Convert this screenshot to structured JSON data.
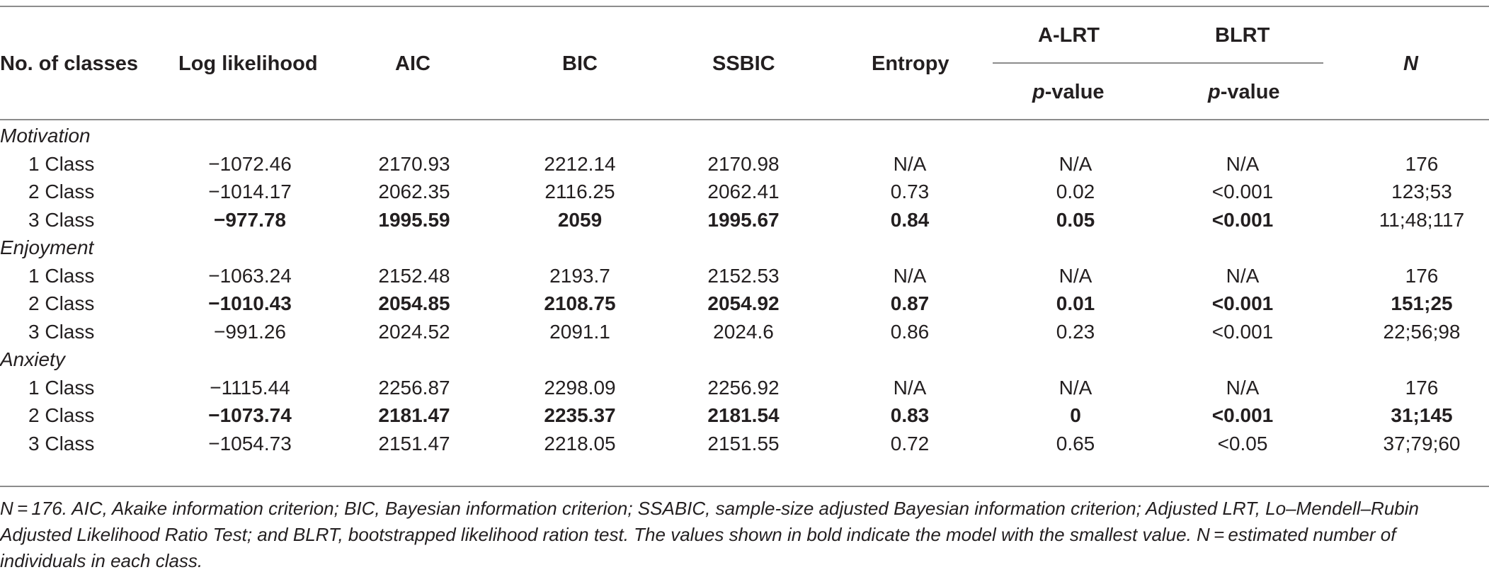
{
  "headers": {
    "col1": "No. of classes",
    "col2": "Log likelihood",
    "col3": "AIC",
    "col4": "BIC",
    "col5": "SSBIC",
    "col6": "Entropy",
    "col7_top": "A-LRT",
    "col8_top": "BLRT",
    "p_italic": "p",
    "p_rest": "-value",
    "col9": "N"
  },
  "sections": [
    {
      "title": "Motivation",
      "rows": [
        {
          "label": "1 Class",
          "bold": false,
          "values": [
            "−1072.46",
            "2170.93",
            "2212.14",
            "2170.98",
            "N/A",
            "N/A",
            "N/A",
            "176"
          ],
          "bold_cells": [
            false,
            false,
            false,
            false,
            false,
            false,
            false,
            false
          ]
        },
        {
          "label": "2 Class",
          "bold": false,
          "values": [
            "−1014.17",
            "2062.35",
            "2116.25",
            "2062.41",
            "0.73",
            "0.02",
            "<0.001",
            "123;53"
          ],
          "bold_cells": [
            false,
            false,
            false,
            false,
            false,
            false,
            false,
            false
          ]
        },
        {
          "label": "3 Class",
          "bold": false,
          "values": [
            "−977.78",
            "1995.59",
            "2059",
            "1995.67",
            "0.84",
            "0.05",
            "<0.001",
            "11;48;117"
          ],
          "bold_cells": [
            true,
            true,
            true,
            true,
            true,
            true,
            true,
            false
          ]
        }
      ]
    },
    {
      "title": "Enjoyment",
      "rows": [
        {
          "label": "1 Class",
          "bold": false,
          "values": [
            "−1063.24",
            "2152.48",
            "2193.7",
            "2152.53",
            "N/A",
            "N/A",
            "N/A",
            "176"
          ],
          "bold_cells": [
            false,
            false,
            false,
            false,
            false,
            false,
            false,
            false
          ]
        },
        {
          "label": "2 Class",
          "bold": false,
          "values": [
            "−1010.43",
            "2054.85",
            "2108.75",
            "2054.92",
            "0.87",
            "0.01",
            "<0.001",
            "151;25"
          ],
          "bold_cells": [
            true,
            true,
            true,
            true,
            true,
            true,
            true,
            true
          ]
        },
        {
          "label": "3 Class",
          "bold": false,
          "values": [
            "−991.26",
            "2024.52",
            "2091.1",
            "2024.6",
            "0.86",
            "0.23",
            "<0.001",
            "22;56;98"
          ],
          "bold_cells": [
            false,
            false,
            false,
            false,
            false,
            false,
            false,
            false
          ]
        }
      ]
    },
    {
      "title": "Anxiety",
      "rows": [
        {
          "label": "1 Class",
          "bold": false,
          "values": [
            "−1115.44",
            "2256.87",
            "2298.09",
            "2256.92",
            "N/A",
            "N/A",
            "N/A",
            "176"
          ],
          "bold_cells": [
            false,
            false,
            false,
            false,
            false,
            false,
            false,
            false
          ]
        },
        {
          "label": "2 Class",
          "bold": false,
          "values": [
            "−1073.74",
            "2181.47",
            "2235.37",
            "2181.54",
            "0.83",
            "0",
            "<0.001",
            "31;145"
          ],
          "bold_cells": [
            true,
            true,
            true,
            true,
            true,
            true,
            true,
            true
          ]
        },
        {
          "label": "3 Class",
          "bold": false,
          "values": [
            "−1054.73",
            "2151.47",
            "2218.05",
            "2151.55",
            "0.72",
            "0.65",
            "<0.05",
            "37;79;60"
          ],
          "bold_cells": [
            false,
            false,
            false,
            false,
            false,
            false,
            false,
            false
          ]
        }
      ]
    }
  ],
  "footnote": {
    "line1": "N = 176. AIC, Akaike information criterion; BIC, Bayesian information criterion; SSABIC, sample-size adjusted Bayesian information criterion; Adjusted LRT, Lo–Mendell–Rubin",
    "line2": "Adjusted Likelihood Ratio Test; and BLRT, bootstrapped likelihood ration test. The values shown in bold indicate the model with the smallest value. N = estimated number of",
    "line3": "individuals in each class."
  },
  "colors": {
    "text": "#231f20",
    "rule": "#8c8c8c"
  }
}
